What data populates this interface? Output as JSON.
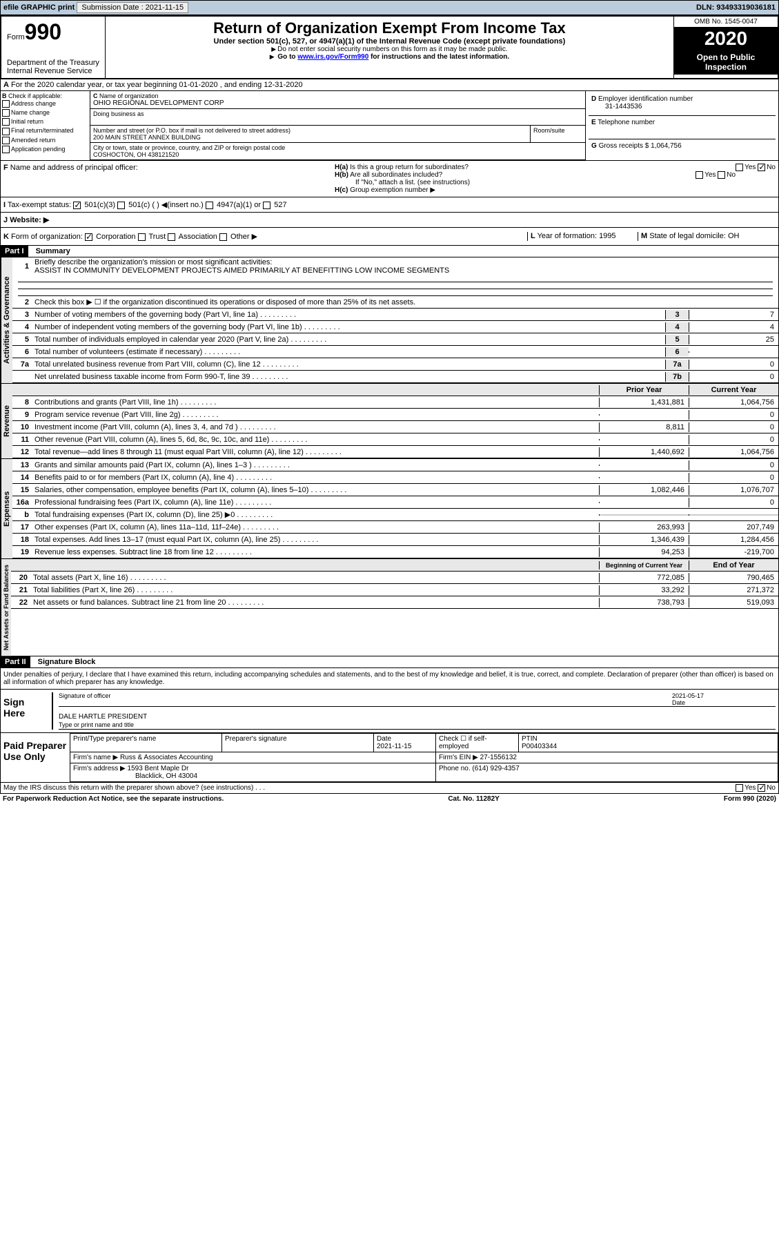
{
  "topbar": {
    "efile": "efile GRAPHIC print",
    "submission_label": "Submission Date : 2021-11-15",
    "dln": "DLN: 93493319036181"
  },
  "header": {
    "form": "990",
    "form_prefix": "Form",
    "dept": "Department of the Treasury\nInternal Revenue Service",
    "title": "Return of Organization Exempt From Income Tax",
    "subtitle": "Under section 501(c), 527, or 4947(a)(1) of the Internal Revenue Code (except private foundations)",
    "instr1": "Do not enter social security numbers on this form as it may be made public.",
    "instr2_pre": "Go to ",
    "instr2_link": "www.irs.gov/Form990",
    "instr2_post": " for instructions and the latest information.",
    "omb": "OMB No. 1545-0047",
    "year": "2020",
    "open": "Open to Public Inspection"
  },
  "rowA": "For the 2020 calendar year, or tax year beginning 01-01-2020    , and ending 12-31-2020",
  "boxB": {
    "label": "Check if applicable:",
    "items": [
      "Address change",
      "Name change",
      "Initial return",
      "Final return/terminated",
      "Amended return",
      "Application pending"
    ]
  },
  "boxC": {
    "name_label": "Name of organization",
    "name": "OHIO REGIONAL DEVELOPMENT CORP",
    "dba_label": "Doing business as",
    "addr_label": "Number and street (or P.O. box if mail is not delivered to street address)",
    "addr": "200 MAIN STREET ANNEX BUILDING",
    "room_label": "Room/suite",
    "city_label": "City or town, state or province, country, and ZIP or foreign postal code",
    "city": "COSHOCTON, OH  438121520"
  },
  "boxD": {
    "label": "Employer identification number",
    "val": "31-1443536"
  },
  "boxE": {
    "label": "Telephone number"
  },
  "boxG": {
    "label": "Gross receipts $",
    "val": "1,064,756"
  },
  "boxF": {
    "label": "Name and address of principal officer:"
  },
  "boxH": {
    "a": "Is this a group return for subordinates?",
    "b": "Are all subordinates included?",
    "b_note": "If \"No,\" attach a list. (see instructions)",
    "c": "Group exemption number",
    "yes": "Yes",
    "no": "No"
  },
  "taxStatus": {
    "label": "Tax-exempt status:",
    "opts": [
      "501(c)(3)",
      "501(c) (  )",
      "(insert no.)",
      "4947(a)(1) or",
      "527"
    ]
  },
  "website": "Website:",
  "rowK": {
    "label": "Form of organization:",
    "opts": [
      "Corporation",
      "Trust",
      "Association",
      "Other"
    ]
  },
  "rowL": {
    "label": "Year of formation:",
    "val": "1995"
  },
  "rowM": {
    "label": "State of legal domicile:",
    "val": "OH"
  },
  "partI": {
    "header": "Part I",
    "title": "Summary"
  },
  "summary": {
    "line1_label": "Briefly describe the organization's mission or most significant activities:",
    "line1_val": "ASSIST IN COMMUNITY DEVELOPMENT PROJECTS AIMED PRIMARILY AT BENEFITTING LOW INCOME SEGMENTS",
    "line2": "Check this box ▶ ☐  if the organization discontinued its operations or disposed of more than 25% of its net assets.",
    "lines_gov": [
      {
        "n": "3",
        "t": "Number of voting members of the governing body (Part VI, line 1a)",
        "box": "3",
        "v": "7"
      },
      {
        "n": "4",
        "t": "Number of independent voting members of the governing body (Part VI, line 1b)",
        "box": "4",
        "v": "4"
      },
      {
        "n": "5",
        "t": "Total number of individuals employed in calendar year 2020 (Part V, line 2a)",
        "box": "5",
        "v": "25"
      },
      {
        "n": "6",
        "t": "Total number of volunteers (estimate if necessary)",
        "box": "6",
        "v": ""
      },
      {
        "n": "7a",
        "t": "Total unrelated business revenue from Part VIII, column (C), line 12",
        "box": "7a",
        "v": "0"
      },
      {
        "n": "",
        "t": "Net unrelated business taxable income from Form 990-T, line 39",
        "box": "7b",
        "v": "0"
      }
    ],
    "col_prior": "Prior Year",
    "col_current": "Current Year",
    "lines_rev": [
      {
        "n": "8",
        "t": "Contributions and grants (Part VIII, line 1h)",
        "p": "1,431,881",
        "c": "1,064,756"
      },
      {
        "n": "9",
        "t": "Program service revenue (Part VIII, line 2g)",
        "p": "",
        "c": "0"
      },
      {
        "n": "10",
        "t": "Investment income (Part VIII, column (A), lines 3, 4, and 7d )",
        "p": "8,811",
        "c": "0"
      },
      {
        "n": "11",
        "t": "Other revenue (Part VIII, column (A), lines 5, 6d, 8c, 9c, 10c, and 11e)",
        "p": "",
        "c": "0"
      },
      {
        "n": "12",
        "t": "Total revenue—add lines 8 through 11 (must equal Part VIII, column (A), line 12)",
        "p": "1,440,692",
        "c": "1,064,756"
      }
    ],
    "lines_exp": [
      {
        "n": "13",
        "t": "Grants and similar amounts paid (Part IX, column (A), lines 1–3 )",
        "p": "",
        "c": "0"
      },
      {
        "n": "14",
        "t": "Benefits paid to or for members (Part IX, column (A), line 4)",
        "p": "",
        "c": "0"
      },
      {
        "n": "15",
        "t": "Salaries, other compensation, employee benefits (Part IX, column (A), lines 5–10)",
        "p": "1,082,446",
        "c": "1,076,707"
      },
      {
        "n": "16a",
        "t": "Professional fundraising fees (Part IX, column (A), line 11e)",
        "p": "",
        "c": "0"
      },
      {
        "n": "b",
        "t": "Total fundraising expenses (Part IX, column (D), line 25) ▶0",
        "p": "GREY",
        "c": "GREY"
      },
      {
        "n": "17",
        "t": "Other expenses (Part IX, column (A), lines 11a–11d, 11f–24e)",
        "p": "263,993",
        "c": "207,749"
      },
      {
        "n": "18",
        "t": "Total expenses. Add lines 13–17 (must equal Part IX, column (A), line 25)",
        "p": "1,346,439",
        "c": "1,284,456"
      },
      {
        "n": "19",
        "t": "Revenue less expenses. Subtract line 18 from line 12",
        "p": "94,253",
        "c": "-219,700"
      }
    ],
    "col_begin": "Beginning of Current Year",
    "col_end": "End of Year",
    "lines_net": [
      {
        "n": "20",
        "t": "Total assets (Part X, line 16)",
        "p": "772,085",
        "c": "790,465"
      },
      {
        "n": "21",
        "t": "Total liabilities (Part X, line 26)",
        "p": "33,292",
        "c": "271,372"
      },
      {
        "n": "22",
        "t": "Net assets or fund balances. Subtract line 21 from line 20",
        "p": "738,793",
        "c": "519,093"
      }
    ],
    "vert_gov": "Activities & Governance",
    "vert_rev": "Revenue",
    "vert_exp": "Expenses",
    "vert_net": "Net Assets or Fund Balances"
  },
  "partII": {
    "header": "Part II",
    "title": "Signature Block"
  },
  "sig": {
    "declaration": "Under penalties of perjury, I declare that I have examined this return, including accompanying schedules and statements, and to the best of my knowledge and belief, it is true, correct, and complete. Declaration of preparer (other than officer) is based on all information of which preparer has any knowledge.",
    "sign_here": "Sign Here",
    "sig_officer": "Signature of officer",
    "date_label": "Date",
    "date_val": "2021-05-17",
    "name": "DALE HARTLE  PRESIDENT",
    "name_label": "Type or print name and title"
  },
  "prep": {
    "title": "Paid Preparer Use Only",
    "h1": "Print/Type preparer's name",
    "h2": "Preparer's signature",
    "h3": "Date",
    "h4": "Check ☐ if self-employed",
    "h5": "PTIN",
    "date": "2021-11-15",
    "ptin": "P00403344",
    "firm_label": "Firm's name",
    "firm": "Russ & Associates Accounting",
    "ein_label": "Firm's EIN",
    "ein": "27-1556132",
    "addr_label": "Firm's address",
    "addr": "1593 Bent Maple Dr",
    "addr2": "Blacklick, OH  43004",
    "phone_label": "Phone no.",
    "phone": "(614) 929-4357",
    "discuss": "May the IRS discuss this return with the preparer shown above? (see instructions)"
  },
  "footer": {
    "paperwork": "For Paperwork Reduction Act Notice, see the separate instructions.",
    "cat": "Cat. No. 11282Y",
    "form": "Form 990 (2020)"
  }
}
